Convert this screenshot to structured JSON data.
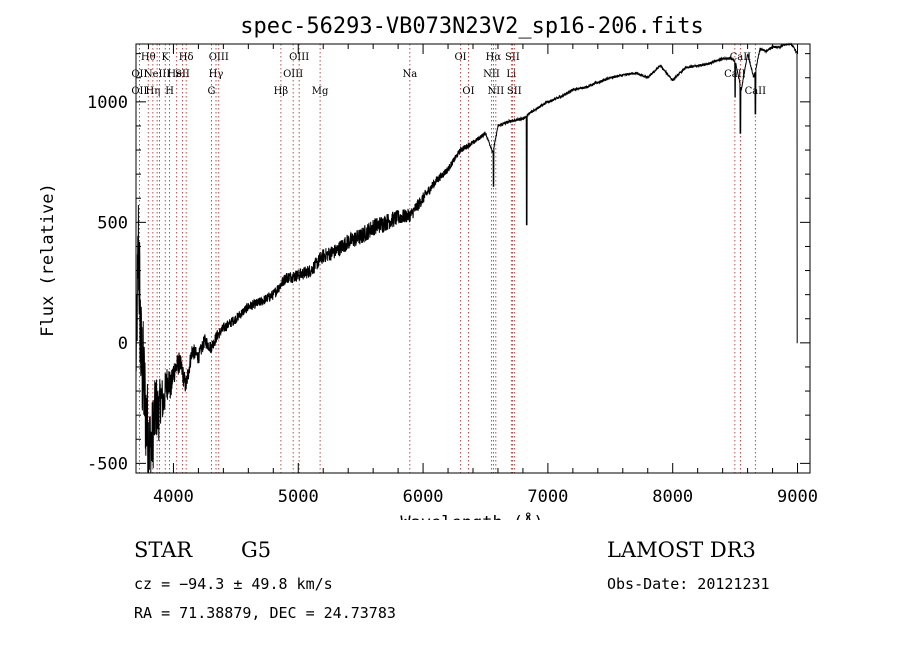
{
  "chart_data": {
    "type": "line",
    "title": "spec-56293-VB073N23V2_sp16-206.fits",
    "xlabel": "Wavelength (Å)",
    "ylabel": "Flux (relative)",
    "xlim": [
      3700,
      9100
    ],
    "ylim": [
      -540,
      1240
    ],
    "xticks": [
      4000,
      5000,
      6000,
      7000,
      8000,
      9000
    ],
    "yticks": [
      -500,
      0,
      500,
      1000
    ],
    "spectrum": {
      "x": [
        3700,
        3720,
        3740,
        3760,
        3780,
        3800,
        3820,
        3840,
        3860,
        3880,
        3900,
        3920,
        3940,
        3960,
        3980,
        4000,
        4050,
        4100,
        4150,
        4200,
        4250,
        4300,
        4350,
        4400,
        4500,
        4600,
        4700,
        4800,
        4900,
        5000,
        5100,
        5200,
        5300,
        5400,
        5500,
        5600,
        5700,
        5800,
        5900,
        6000,
        6100,
        6200,
        6300,
        6400,
        6500,
        6560,
        6600,
        6700,
        6800,
        6900,
        7000,
        7100,
        7200,
        7300,
        7400,
        7500,
        7600,
        7700,
        7800,
        7900,
        8000,
        8100,
        8200,
        8300,
        8400,
        8450,
        8500,
        8550,
        8600,
        8650,
        8700,
        8750,
        8800,
        8850,
        8900,
        8950,
        9000
      ],
      "y": [
        -100,
        420,
        -60,
        -150,
        -300,
        -400,
        -450,
        -350,
        -260,
        -300,
        -220,
        -250,
        -180,
        -150,
        -190,
        -120,
        -80,
        -180,
        -30,
        -60,
        10,
        -20,
        30,
        60,
        100,
        150,
        170,
        200,
        270,
        280,
        300,
        360,
        380,
        420,
        440,
        480,
        500,
        520,
        530,
        600,
        670,
        720,
        800,
        830,
        870,
        790,
        900,
        920,
        930,
        970,
        1000,
        1020,
        1050,
        1060,
        1080,
        1100,
        1110,
        1120,
        1100,
        1150,
        1090,
        1140,
        1150,
        1160,
        1180,
        1180,
        1170,
        1050,
        1200,
        1100,
        1220,
        1210,
        1230,
        1225,
        1240,
        1240,
        1200
      ],
      "noise": [
        140,
        300,
        260,
        240,
        220,
        200,
        180,
        160,
        140,
        120,
        100,
        90,
        80,
        70,
        60,
        55,
        45,
        40,
        35,
        30,
        28,
        26,
        24,
        22,
        20,
        20,
        20,
        22,
        24,
        26,
        28,
        30,
        32,
        34,
        36,
        36,
        36,
        32,
        28,
        24,
        18,
        14,
        12,
        10,
        8,
        6,
        6,
        6,
        6,
        6,
        5,
        5,
        5,
        5,
        5,
        5,
        5,
        5,
        5,
        5,
        5,
        5,
        5,
        5,
        5,
        5,
        5,
        5,
        5,
        5,
        5,
        5,
        5,
        5,
        5,
        5,
        5
      ],
      "absorption": [
        {
          "x": 6830,
          "y": 490
        },
        {
          "x": 6564,
          "y": 650
        },
        {
          "x": 8542,
          "y": 870
        },
        {
          "x": 8500,
          "y": 1020
        },
        {
          "x": 8662,
          "y": 950
        },
        {
          "x": 9000,
          "y": 0
        },
        {
          "x": 9005,
          "y": 350
        }
      ]
    },
    "lines": [
      {
        "x": 3727,
        "labels": [
          {
            "t": "OII",
            "row": 3
          },
          {
            "t": "OII",
            "row": 2
          }
        ]
      },
      {
        "x": 3798,
        "labels": [
          {
            "t": "Hθ",
            "row": 1
          }
        ]
      },
      {
        "x": 3835,
        "labels": [
          {
            "t": "Hη",
            "row": 3
          }
        ]
      },
      {
        "x": 3869,
        "labels": [
          {
            "t": "NeIII",
            "row": 2
          }
        ]
      },
      {
        "x": 3889,
        "labels": []
      },
      {
        "x": 3934,
        "labels": [
          {
            "t": "K",
            "row": 1
          }
        ]
      },
      {
        "x": 3969,
        "labels": [
          {
            "t": "H",
            "row": 3
          }
        ]
      },
      {
        "x": 4026,
        "labels": [
          {
            "t": "HeI",
            "row": 2
          }
        ]
      },
      {
        "x": 4072,
        "labels": [
          {
            "t": "SII",
            "row": 2
          }
        ]
      },
      {
        "x": 4102,
        "labels": [
          {
            "t": "Hδ",
            "row": 1
          }
        ]
      },
      {
        "x": 4305,
        "labels": [
          {
            "t": "G",
            "row": 3
          }
        ]
      },
      {
        "x": 4341,
        "labels": [
          {
            "t": "Hγ",
            "row": 2
          }
        ]
      },
      {
        "x": 4363,
        "labels": [
          {
            "t": "OIII",
            "row": 1
          }
        ]
      },
      {
        "x": 4861,
        "labels": [
          {
            "t": "Hβ",
            "row": 3
          }
        ]
      },
      {
        "x": 4959,
        "labels": [
          {
            "t": "OIII",
            "row": 2
          }
        ]
      },
      {
        "x": 5007,
        "labels": [
          {
            "t": "OIII",
            "row": 1
          }
        ]
      },
      {
        "x": 5175,
        "labels": [
          {
            "t": "Mg",
            "row": 3
          }
        ]
      },
      {
        "x": 5894,
        "labels": [
          {
            "t": "Na",
            "row": 2
          }
        ]
      },
      {
        "x": 6300,
        "labels": [
          {
            "t": "OI",
            "row": 1
          }
        ]
      },
      {
        "x": 6364,
        "labels": [
          {
            "t": "OI",
            "row": 3
          }
        ]
      },
      {
        "x": 6548,
        "labels": [
          {
            "t": "NII",
            "row": 2
          }
        ]
      },
      {
        "x": 6563,
        "labels": [
          {
            "t": "Hα",
            "row": 1
          }
        ]
      },
      {
        "x": 6583,
        "labels": [
          {
            "t": "NII",
            "row": 3
          }
        ]
      },
      {
        "x": 6707,
        "labels": [
          {
            "t": "Li",
            "row": 2
          }
        ]
      },
      {
        "x": 6716,
        "labels": [
          {
            "t": "SII",
            "row": 1
          }
        ]
      },
      {
        "x": 6731,
        "labels": [
          {
            "t": "SII",
            "row": 3
          }
        ]
      },
      {
        "x": 8498,
        "labels": [
          {
            "t": "CaII",
            "row": 2
          }
        ]
      },
      {
        "x": 8542,
        "labels": [
          {
            "t": "CaII",
            "row": 1
          }
        ]
      },
      {
        "x": 8662,
        "labels": [
          {
            "t": "CaII",
            "row": 3
          }
        ]
      }
    ]
  },
  "info": {
    "class": "STAR",
    "subclass": "G5",
    "survey": "LAMOST DR3",
    "redshift": "cz = −94.3 ± 49.8 km/s",
    "obsdate": "Obs-Date: 20121231",
    "coords": "RA =  71.38879, DEC =  24.73783"
  },
  "colors": {
    "line_marker": "#b22222",
    "spectrum": "#000000"
  }
}
